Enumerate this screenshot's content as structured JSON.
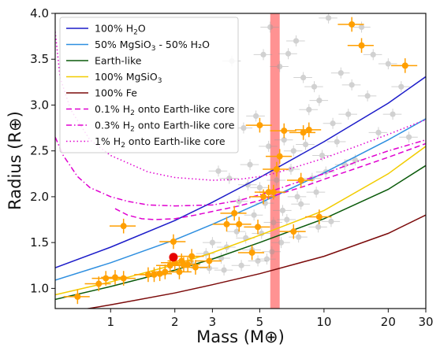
{
  "chart_data": {
    "type": "scatter",
    "xlabel": "Mass (M⊕)",
    "ylabel": "Radius (R⊕)",
    "xscale": "log",
    "xlim": [
      0.55,
      30
    ],
    "ylim": [
      0.78,
      4.0
    ],
    "xticks": [
      1,
      2,
      3,
      5,
      10,
      20,
      30
    ],
    "xticklabels": [
      "1",
      "2",
      "3",
      "5",
      "10",
      "20",
      "30"
    ],
    "yticks": [
      1.0,
      1.5,
      2.0,
      2.5,
      3.0,
      3.5,
      4.0
    ],
    "yticklabels": [
      "1.0",
      "1.5",
      "2.0",
      "2.5",
      "3.0",
      "3.5",
      "4.0"
    ],
    "grid": false,
    "legend_position": "top-left",
    "colors": {
      "frame": "#111111",
      "band": "#ff7f7f",
      "background_points": "#9a9a9a",
      "highlight_points": "#ff9f00",
      "featured_point": "#e60000"
    },
    "shaded_band": {
      "x_range": [
        5.6,
        6.2
      ],
      "color": "#ff7f7f"
    },
    "series": [
      {
        "name": "100% H₂O",
        "legend_text": "100% H",
        "legend_sub": "2",
        "legend_tail": "O",
        "color": "#1c1cc9",
        "style": "solid",
        "x": [
          0.55,
          1,
          2,
          3,
          5,
          10,
          20,
          30
        ],
        "y": [
          1.225,
          1.45,
          1.74,
          1.94,
          2.21,
          2.6,
          3.02,
          3.31
        ]
      },
      {
        "name": "50% MgSiO₃ - 50% H₂O",
        "legend_text": "50% MgSiO",
        "legend_sub": "3",
        "legend_tail": " - 50% H₂O",
        "color": "#2e8fe0",
        "style": "solid",
        "x": [
          0.55,
          1,
          2,
          3,
          5,
          10,
          20,
          30
        ],
        "y": [
          1.09,
          1.28,
          1.53,
          1.7,
          1.93,
          2.26,
          2.62,
          2.85
        ]
      },
      {
        "name": "Earth-like",
        "legend_text": "Earth-like",
        "legend_sub": "",
        "legend_tail": "",
        "color": "#0a5a0a",
        "style": "solid",
        "x": [
          0.55,
          1,
          2,
          3,
          5,
          10,
          20,
          30
        ],
        "y": [
          0.88,
          1.02,
          1.2,
          1.32,
          1.5,
          1.76,
          2.08,
          2.34
        ]
      },
      {
        "name": "100% MgSiO₃",
        "legend_text": "100% MgSiO",
        "legend_sub": "3",
        "legend_tail": "",
        "color": "#f2cc00",
        "style": "solid",
        "x": [
          0.55,
          1,
          2,
          3,
          5,
          10,
          20,
          30
        ],
        "y": [
          0.93,
          1.07,
          1.26,
          1.39,
          1.58,
          1.85,
          2.25,
          2.55
        ]
      },
      {
        "name": "100% Fe",
        "legend_text": "100% Fe",
        "legend_sub": "",
        "legend_tail": "",
        "color": "#7b0a0a",
        "style": "solid",
        "x": [
          0.55,
          1,
          2,
          3,
          5,
          10,
          20,
          30
        ],
        "y": [
          0.72,
          0.82,
          0.95,
          1.04,
          1.16,
          1.35,
          1.6,
          1.8
        ]
      },
      {
        "name": "0.1% H₂ onto Earth-like core",
        "legend_text": "0.1% H",
        "legend_sub": "2",
        "legend_tail": " onto Earth-like core",
        "color": "#e000d0",
        "style": "dashed",
        "x": [
          1.05,
          1.2,
          1.4,
          1.6,
          2.0,
          2.5,
          3,
          4,
          5,
          6,
          8,
          10,
          15,
          20,
          30
        ],
        "y": [
          1.87,
          1.8,
          1.76,
          1.75,
          1.76,
          1.8,
          1.84,
          1.9,
          1.96,
          2.02,
          2.11,
          2.19,
          2.33,
          2.43,
          2.58
        ]
      },
      {
        "name": "0.3% H₂ onto Earth-like core",
        "legend_text": "0.3% H",
        "legend_sub": "2",
        "legend_tail": " onto Earth-like core",
        "color": "#e000d0",
        "style": "dashdot",
        "x": [
          0.55,
          0.6,
          0.7,
          0.8,
          1.0,
          1.2,
          1.5,
          2,
          3,
          4,
          5,
          6,
          8,
          10,
          15,
          20,
          30
        ],
        "y": [
          2.65,
          2.45,
          2.22,
          2.1,
          2.0,
          1.95,
          1.91,
          1.9,
          1.91,
          1.96,
          2.02,
          2.08,
          2.18,
          2.25,
          2.4,
          2.5,
          2.62
        ]
      },
      {
        "name": "1% H₂ onto Earth-like core",
        "legend_text": "1% H",
        "legend_sub": "2",
        "legend_tail": " onto Earth-like core",
        "color": "#e000d0",
        "style": "dotted",
        "x": [
          0.55,
          0.58,
          0.65,
          0.8,
          1.0,
          1.5,
          2,
          3,
          4,
          5,
          6,
          8,
          10,
          15,
          20,
          30
        ],
        "y": [
          3.8,
          3.3,
          2.95,
          2.62,
          2.45,
          2.27,
          2.21,
          2.18,
          2.19,
          2.22,
          2.26,
          2.35,
          2.42,
          2.57,
          2.68,
          2.84
        ]
      }
    ],
    "background_points": {
      "name": "background planets",
      "x": [
        3.7,
        5.2,
        5.6,
        6.2,
        6.8,
        7.4,
        8.0,
        9.0,
        10.5,
        12,
        13.5,
        15,
        17,
        8.5,
        9.5,
        11,
        13,
        16,
        20,
        23,
        4.2,
        4.8,
        6.5,
        7.2,
        8.2,
        9.8,
        11.5,
        14,
        18,
        21,
        25,
        4.5,
        5.5,
        7.0,
        8.8,
        10.2,
        12.5,
        5.0,
        6.0,
        7.5,
        9.2,
        3.2,
        3.6,
        4.4,
        5.3,
        6.4,
        7.8,
        4.0,
        4.7,
        5.8,
        6.7,
        3.9,
        4.3,
        5.1,
        6.3,
        3.0,
        3.5,
        4.6,
        5.7,
        2.8,
        3.3,
        4.9,
        5.4,
        2.4,
        2.9,
        3.4,
        4.1,
        7.6,
        9.4,
        10.8
      ],
      "y": [
        3.48,
        3.55,
        3.85,
        3.42,
        3.56,
        3.7,
        3.3,
        3.2,
        3.95,
        3.35,
        3.22,
        3.85,
        3.55,
        2.95,
        3.05,
        2.8,
        2.9,
        3.1,
        3.45,
        3.2,
        2.75,
        2.88,
        2.62,
        2.5,
        2.57,
        2.45,
        2.6,
        2.4,
        2.7,
        2.9,
        2.65,
        2.35,
        2.55,
        2.3,
        2.2,
        2.27,
        2.35,
        2.1,
        2.18,
        2.0,
        2.05,
        2.28,
        2.2,
        2.13,
        1.93,
        1.85,
        1.92,
        1.95,
        1.8,
        1.72,
        1.75,
        1.62,
        1.55,
        1.6,
        1.5,
        1.5,
        1.45,
        1.42,
        1.4,
        1.38,
        1.33,
        1.3,
        1.32,
        1.27,
        1.22,
        1.2,
        1.25,
        1.56,
        1.67,
        1.73
      ],
      "x_err_frac": 0.1,
      "y_err": 0.06
    },
    "highlight_points": {
      "name": "highlighted planets",
      "x": [
        0.7,
        0.88,
        0.95,
        1.05,
        1.15,
        1.5,
        1.6,
        1.7,
        1.8,
        1.9,
        2.0,
        2.1,
        2.15,
        2.3,
        2.4,
        2.5,
        2.9,
        3.5,
        3.8,
        4.6,
        5.0,
        5.5,
        5.8,
        6.2,
        6.5,
        7.2,
        7.8,
        8.5,
        9.5,
        13.5,
        15.0,
        24.0,
        1.15,
        1.97,
        4.0,
        4.9,
        5.2,
        6.0,
        8.0,
        2.2
      ],
      "y": [
        0.91,
        1.05,
        1.11,
        1.12,
        1.11,
        1.15,
        1.15,
        1.16,
        1.18,
        1.25,
        1.28,
        1.18,
        1.3,
        1.26,
        1.35,
        1.23,
        1.3,
        1.7,
        1.82,
        1.39,
        2.78,
        2.05,
        2.05,
        2.44,
        2.72,
        1.62,
        2.18,
        2.73,
        1.78,
        3.88,
        3.65,
        3.43,
        1.68,
        1.51,
        1.7,
        1.67,
        2.0,
        2.3,
        2.7,
        1.26
      ],
      "x_err_frac": 0.14,
      "y_err": 0.08
    },
    "featured_point": {
      "name": "featured planet",
      "x": 1.97,
      "y": 1.34
    }
  }
}
